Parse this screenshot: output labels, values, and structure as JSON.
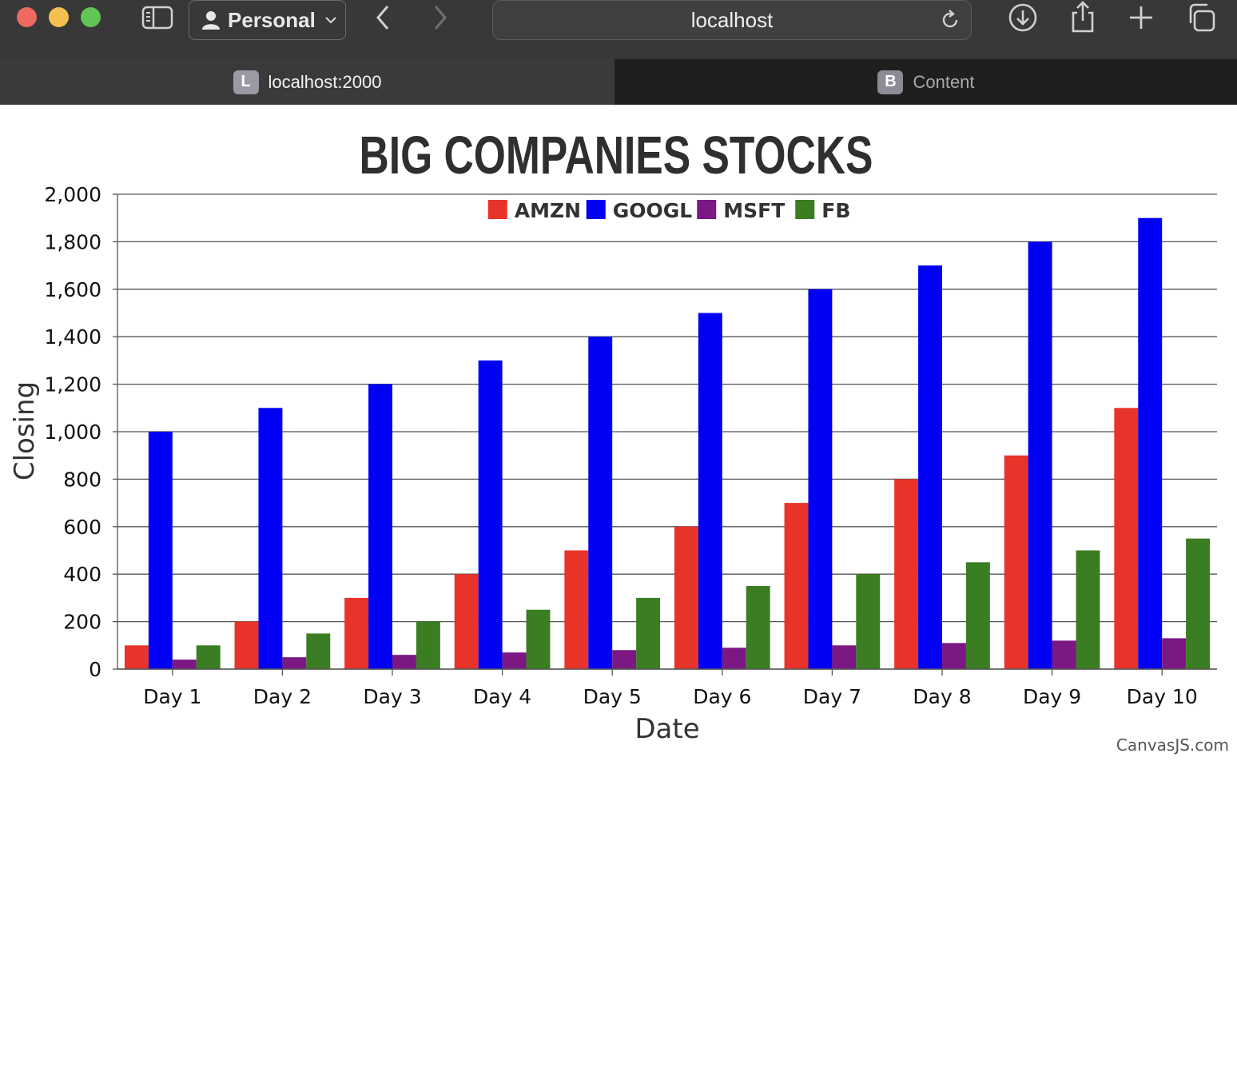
{
  "browser": {
    "profile_label": "Personal",
    "address": "localhost",
    "tabs": [
      {
        "favicon_letter": "L",
        "label": "localhost:2000",
        "active": true
      },
      {
        "favicon_letter": "B",
        "label": "Content",
        "active": false
      }
    ],
    "icons": {
      "sidebar": "sidebar-icon",
      "profile": "person-icon",
      "back": "chevron-left-icon",
      "forward": "chevron-right-icon",
      "reload": "reload-icon",
      "download": "download-icon",
      "share": "share-icon",
      "new_tab": "plus-icon",
      "tab_overview": "tab-overview-icon"
    }
  },
  "chart_data": {
    "type": "bar",
    "title": "BIG COMPANIES STOCKS",
    "xlabel": "Date",
    "ylabel": "Closing",
    "ylim": [
      0,
      2000
    ],
    "yticks": [
      0,
      200,
      400,
      600,
      800,
      1000,
      1200,
      1400,
      1600,
      1800,
      2000
    ],
    "ytick_labels": [
      "0",
      "200",
      "400",
      "600",
      "800",
      "1,000",
      "1,200",
      "1,400",
      "1,600",
      "1,800",
      "2,000"
    ],
    "grid": true,
    "legend_position": "top-center",
    "credit": "CanvasJS.com",
    "categories": [
      "Day 1",
      "Day 2",
      "Day 3",
      "Day 4",
      "Day 5",
      "Day 6",
      "Day 7",
      "Day 8",
      "Day 9",
      "Day 10"
    ],
    "series": [
      {
        "name": "AMZN",
        "color": "#e8332a",
        "values": [
          100,
          200,
          300,
          400,
          500,
          600,
          700,
          800,
          900,
          1100
        ]
      },
      {
        "name": "GOOGL",
        "color": "#0000f5",
        "values": [
          1000,
          1100,
          1200,
          1300,
          1400,
          1500,
          1600,
          1700,
          1800,
          1900
        ]
      },
      {
        "name": "MSFT",
        "color": "#7b1883",
        "values": [
          40,
          50,
          60,
          70,
          80,
          90,
          100,
          110,
          120,
          130
        ]
      },
      {
        "name": "FB",
        "color": "#3a7d22",
        "values": [
          100,
          150,
          200,
          250,
          300,
          350,
          400,
          450,
          500,
          550
        ]
      }
    ]
  }
}
